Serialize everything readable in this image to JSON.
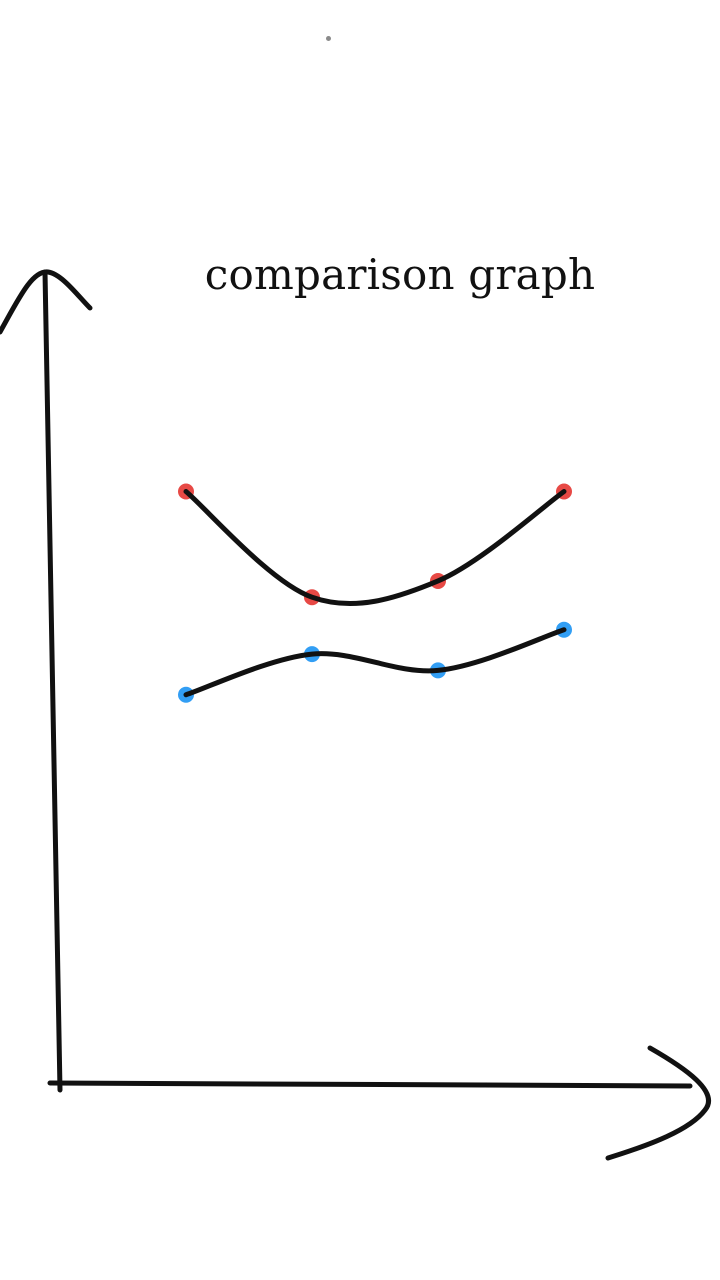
{
  "chart_data": {
    "type": "line",
    "title": "comparison graph",
    "xlabel": "",
    "ylabel": "",
    "x": [
      1,
      2,
      3,
      4
    ],
    "xlim": [
      0,
      5
    ],
    "ylim": [
      0,
      10
    ],
    "grid": false,
    "legend": "none",
    "series": [
      {
        "values": [
          7.3,
          6.0,
          6.2,
          7.3
        ],
        "color": "#e53935"
      },
      {
        "values": [
          4.8,
          5.3,
          5.1,
          5.6
        ],
        "color": "#2196f3"
      }
    ],
    "line_color": "#111111"
  }
}
